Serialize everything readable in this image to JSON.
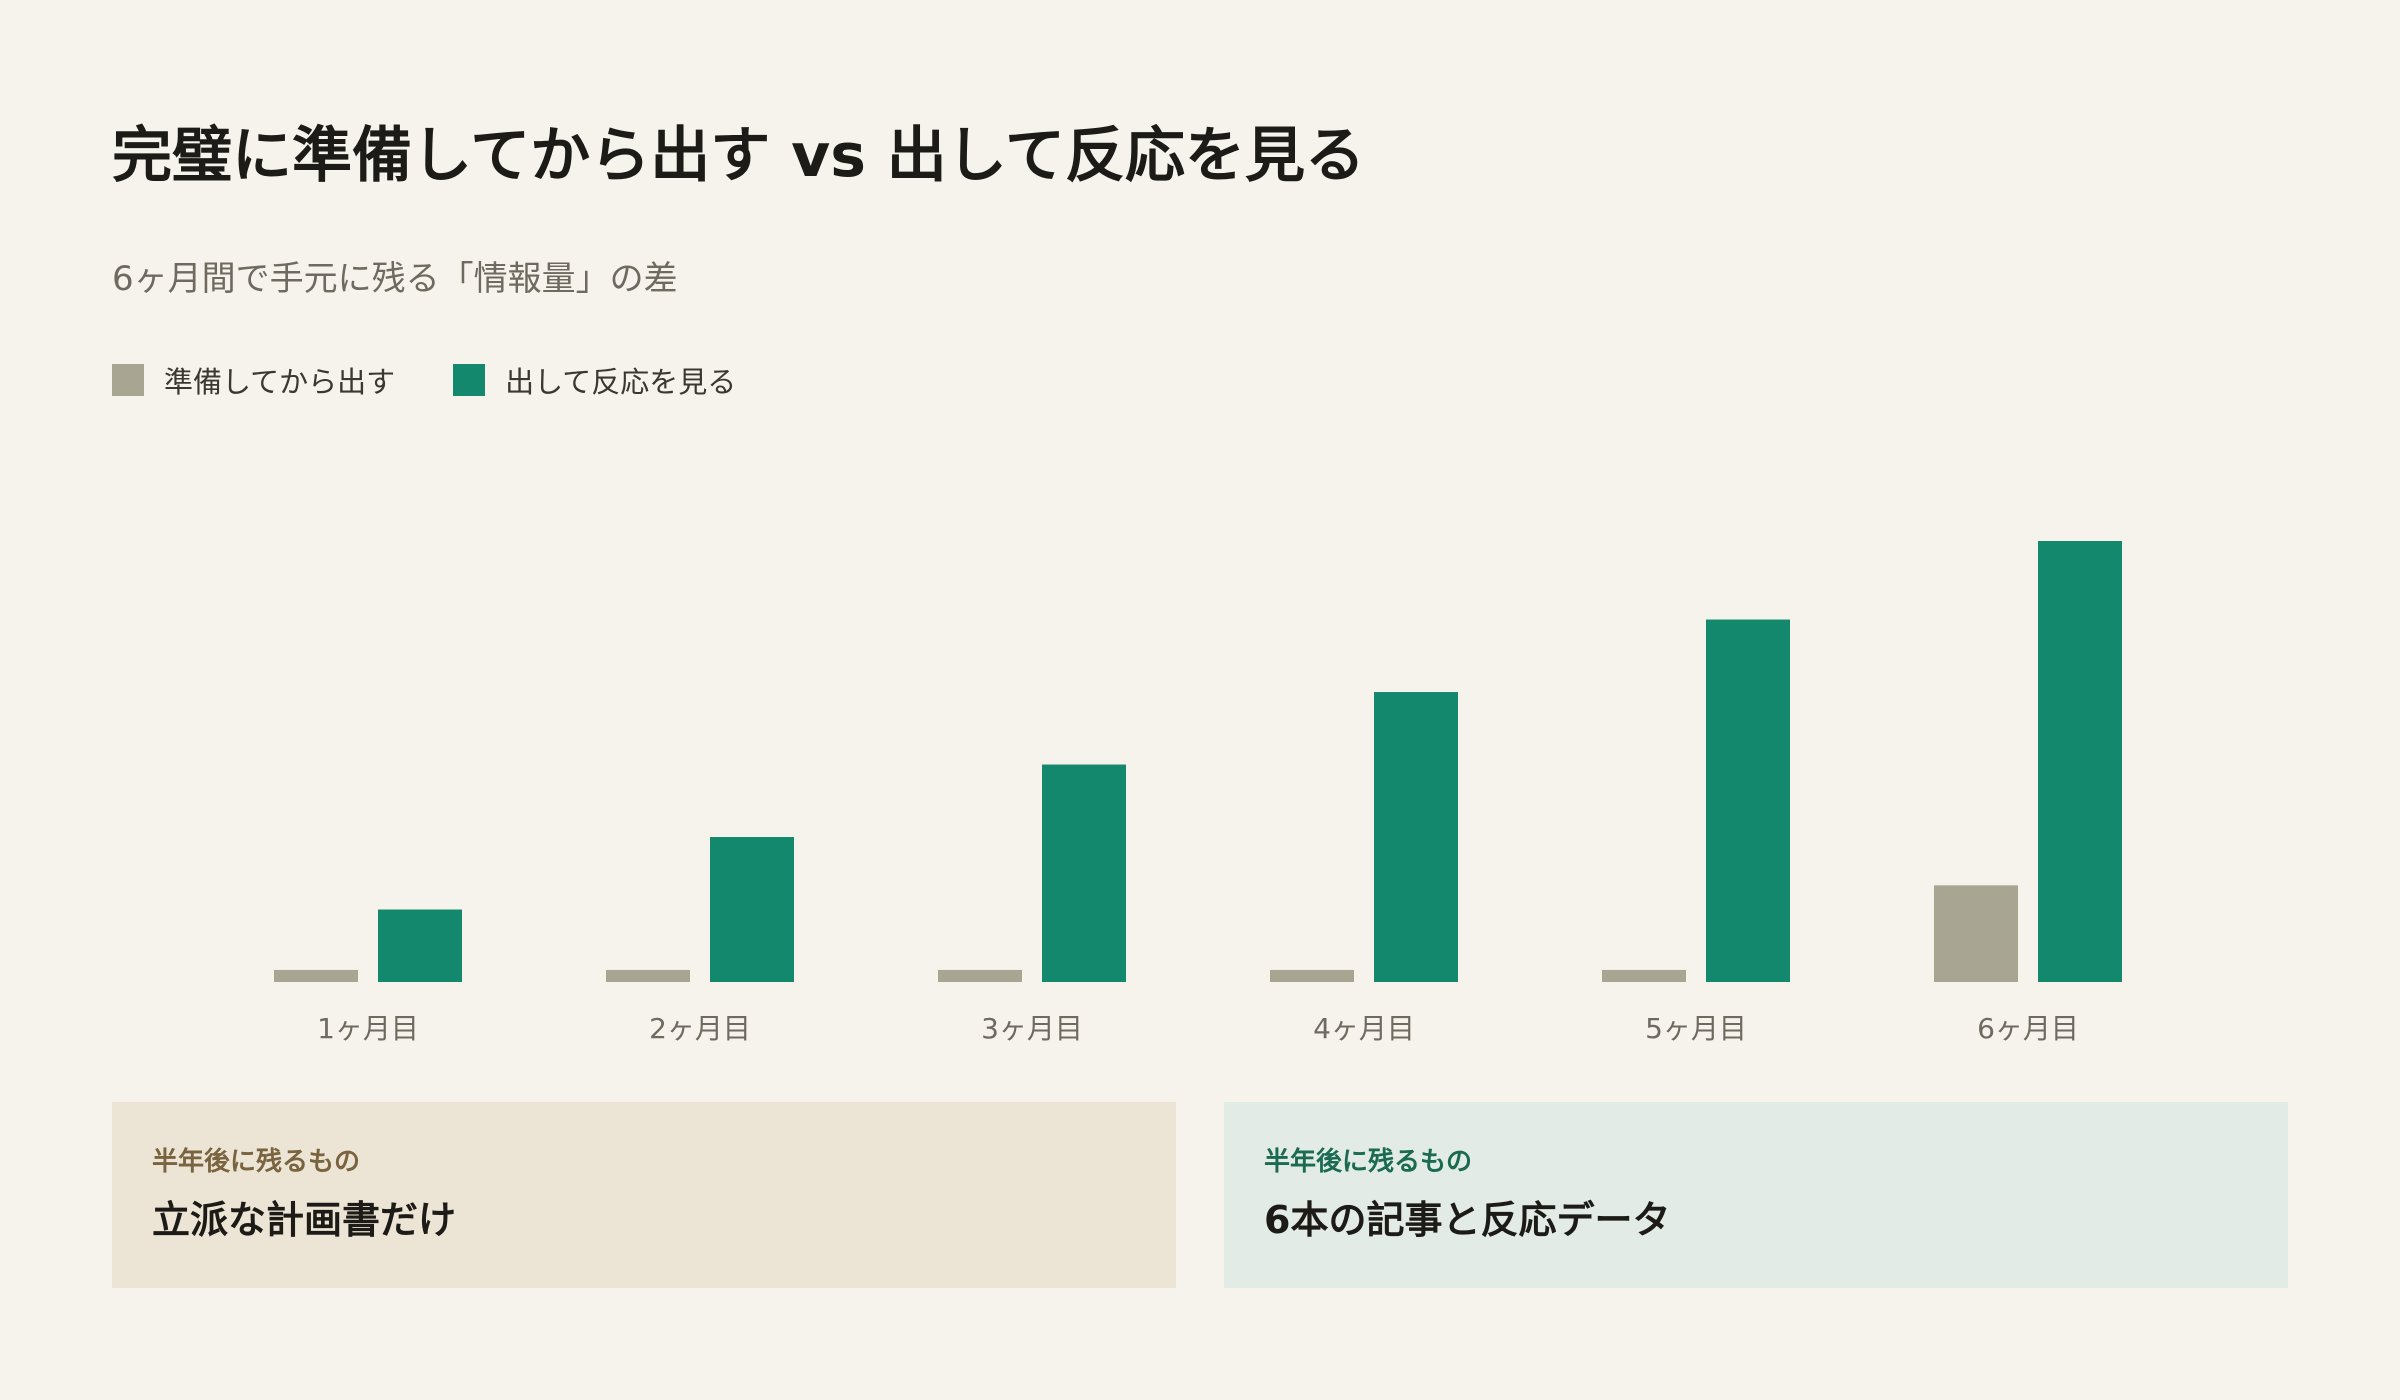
{
  "header": {
    "title": "完璧に準備してから出す vs 出して反応を見る",
    "subtitle": "6ヶ月間で手元に残る「情報量」の差"
  },
  "legend": {
    "items": [
      {
        "label": "準備してから出す",
        "color": "#a8a593"
      },
      {
        "label": "出して反応を見る",
        "color": "#13886c"
      }
    ]
  },
  "chart_data": {
    "type": "bar",
    "title": "完璧に準備してから出す vs 出して反応を見る",
    "subtitle": "6ヶ月間で手元に残る「情報量」の差",
    "categories": [
      "1ヶ月目",
      "2ヶ月目",
      "3ヶ月目",
      "4ヶ月目",
      "5ヶ月目",
      "6ヶ月目"
    ],
    "series": [
      {
        "name": "準備してから出す",
        "color": "#a8a593",
        "values": [
          2,
          2,
          2,
          2,
          2,
          16
        ]
      },
      {
        "name": "出して反応を見る",
        "color": "#13886c",
        "values": [
          12,
          24,
          36,
          48,
          60,
          73
        ]
      }
    ],
    "ylim": [
      0,
      73
    ],
    "grid": false,
    "legend_position": "top-left",
    "xlabel": "",
    "ylabel": ""
  },
  "cards": {
    "left": {
      "kicker": "半年後に残るもの",
      "value": "立派な計画書だけ"
    },
    "right": {
      "kicker": "半年後に残るもの",
      "value": "6本の記事と反応データ"
    }
  }
}
